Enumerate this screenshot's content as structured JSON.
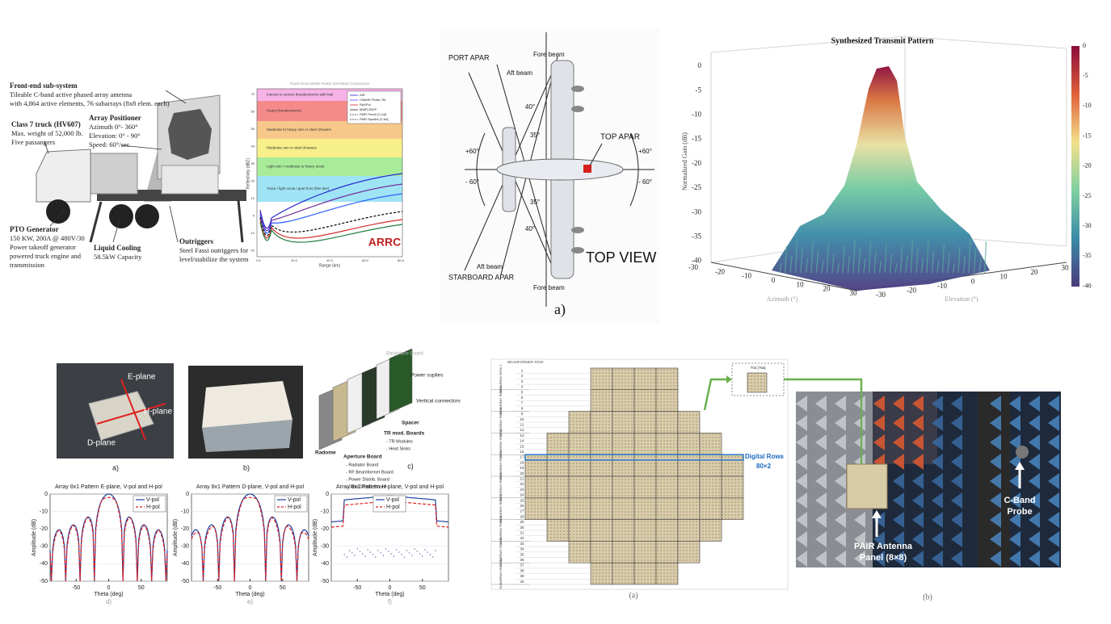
{
  "truck_panel": {
    "front_end": {
      "title": "Front-end sub-system",
      "lines": [
        "Tileable C-band active phased array antenna",
        "with 4,864 active elements, 76 subarrays (8x8 elem. each)"
      ]
    },
    "positioner": {
      "title": "Array Positioner",
      "lines": [
        "Azimuth 0°- 360°",
        "Elevation: 0° - 90°",
        "Speed: 60°/sec"
      ]
    },
    "truck": {
      "title": "Class 7 truck  (HV607)",
      "lines": [
        "Max. weight of 52,000 lb.",
        "Five passangers"
      ]
    },
    "generator": {
      "title": "PTO Generator",
      "lines": [
        "150 KW, 200A @ 480V/30",
        "Power takeoff generator",
        "powered truck engine and",
        "transmission"
      ]
    },
    "cooling": {
      "title": "Liquid Cooling",
      "lines": [
        "58.5kW Capacity"
      ]
    },
    "outriggers": {
      "title": "Outriggers",
      "lines": [
        "Steel Fassi outriggers for",
        "level/stabilize the system"
      ]
    }
  },
  "sensitivity_chart": {
    "title": "Rapid-Scan Mobile Radar Sensitivity Comparison",
    "bands": [
      "Intense to severe thunderstorms with hail",
      "Heavy thunderstorms",
      "Moderate to heavy rain or sleet showers",
      "Moderate rain or sleet showers",
      "Light rain / moderate to heavy snow",
      "Trace / light snow / gust front (fine line)"
    ],
    "legend": [
      "AIR",
      "CIMMS Phase-Tilt",
      "RaXPol",
      "MWR-05XP",
      "PAIR Pencil [C-bd]",
      "PAIR Spoiled [C-bd]"
    ],
    "x_label": "Range (km)",
    "y_label": "Reflectivity (dBZ)",
    "yticks": [
      70,
      60,
      50,
      40,
      30,
      20,
      10,
      0,
      -10,
      -20
    ],
    "xticks": [
      "0.0",
      "20.0",
      "40.0",
      "60.0",
      "80.0"
    ],
    "logo": "ARRC"
  },
  "aircraft_panel": {
    "port": "PORT APAR",
    "aft_top": "Aft beam",
    "fore_top": "Fore beam",
    "angle_40_top": "40°",
    "angle_35_top": "35°",
    "top_apar": "TOP APAR",
    "plus60_left": "+60°",
    "minus60_left": "- 60°",
    "plus60_right": "+60°",
    "minus60_right": "- 60°",
    "angle_35_bottom": "35°",
    "angle_40_bottom": "40°",
    "aft_bottom": "Aft beam",
    "starboard": "STARBOARD APAR",
    "fore_bottom": "Fore beam",
    "view": "TOP VIEW",
    "caption": "a)"
  },
  "pattern_3d": {
    "title": "Synthesized Transmit Pattern",
    "z_label": "Normalized Gain (dB)",
    "x_label": "Azimuth (°)",
    "y_label": "Elevation (°)",
    "z_ticks": [
      0,
      -5,
      -10,
      -15,
      -20,
      -25,
      -30,
      -35,
      -40
    ],
    "colorbar_ticks": [
      0,
      -5,
      -10,
      -15,
      -20,
      -25,
      -30,
      -35,
      -40
    ],
    "az_ticks": [
      -30,
      -20,
      -10,
      0,
      10,
      20,
      30
    ],
    "el_ticks": [
      -30,
      -20,
      -10,
      0,
      10,
      20,
      30
    ]
  },
  "array_panel": {
    "photo_a": {
      "e_plane": "E-plane",
      "h_plane": "H-plane",
      "d_plane": "D-plane",
      "caption": "a)"
    },
    "photo_b": {
      "caption": "b)"
    },
    "exploded": {
      "backplane": "Backplane Board",
      "power": "Power suplies",
      "vertical": "Vertical connectors",
      "spacer": "Spacer",
      "tr_title": "TR mod. Boards",
      "tr_lines": [
        "- TR Modules",
        "- Heat Sinks"
      ],
      "radome": "Radome",
      "aperture_title": "Aperture Board",
      "aperture_lines": [
        "- Radiator Board",
        "- RF Beamformer Board",
        "- Power Distrib. Board",
        "- Data Distrib. Board"
      ],
      "caption": "c)"
    },
    "plots": [
      {
        "title": "Array 8x1 Pattern E-plane, V-pol and H-pol",
        "caption": "d)"
      },
      {
        "title": "Array 8x1 Pattern D-plane, V-pol and H-pol",
        "caption": "e)"
      },
      {
        "title": "Array 8x1 Pattern H-plane, V-pol and H-pol",
        "caption": "f)"
      }
    ],
    "legend": [
      "V-pol",
      "H-pol"
    ],
    "x_label": "Theta (deg)",
    "y_label": "Amplitude (dB)",
    "yticks": [
      0,
      -10,
      -20,
      -30,
      -40,
      -50
    ],
    "xticks": [
      -50,
      0,
      50
    ]
  },
  "beamformer_panel": {
    "header": "BEAMFORMER ROW",
    "rows": [
      1,
      2,
      3,
      4,
      5,
      6,
      7,
      8,
      9,
      10,
      11,
      12,
      13,
      14,
      15,
      16,
      17,
      18,
      19,
      20,
      21,
      22,
      23,
      24,
      25,
      26,
      27,
      28,
      29,
      30,
      31,
      32,
      33,
      34,
      35,
      36,
      37,
      38,
      39,
      40
    ],
    "subarray_rows": [
      "SUBARRAY ROW 1",
      "SUBARRAY ROW 2",
      "SUBARRAY ROW 3",
      "SUBARRAY ROW 4",
      "SUBARRAY ROW 5",
      "SUBARRAY ROW 6",
      "SUBARRAY ROW 7",
      "SUBARRAY ROW 8",
      "SUBARRAY ROW 9",
      "SUBARRAY ROW 10"
    ],
    "tile_label": "T0a [76a]",
    "digital_rows": "Digital Rows",
    "digital_count": "80×2",
    "caption": "(a)"
  },
  "anechoic_photo": {
    "antenna_label": [
      "PAIR Antenna",
      "Panel (8×8)"
    ],
    "probe_label": [
      "C-Band",
      "Probe"
    ],
    "caption": "(b)"
  }
}
